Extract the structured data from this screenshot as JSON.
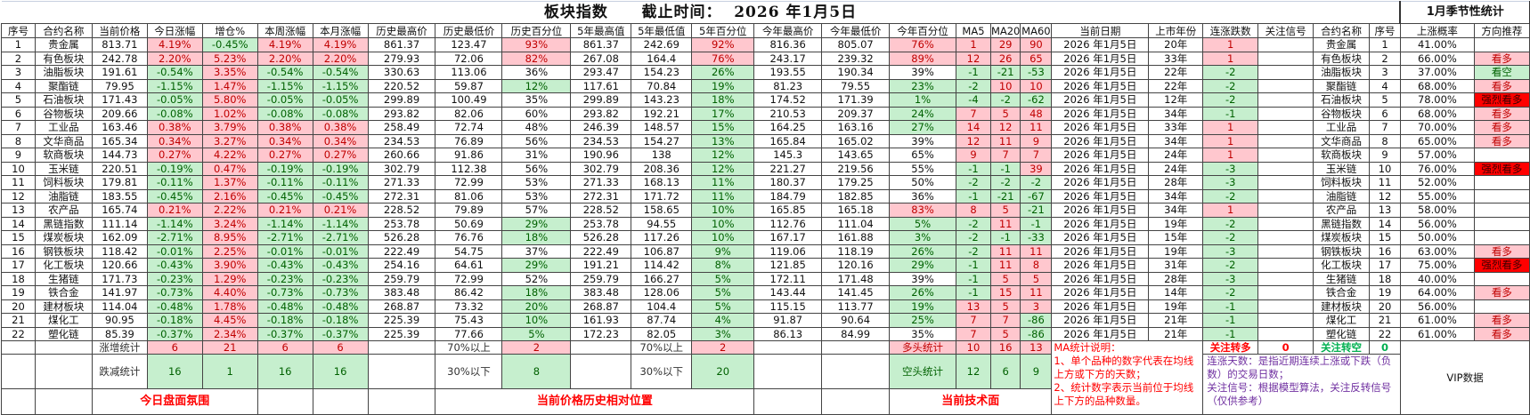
{
  "title": {
    "name": "板块指数",
    "deadline_label": "截止时间：",
    "date": "2026 年1月5日",
    "season_title": "1月季节性统计"
  },
  "columns": [
    "序号",
    "合约名称",
    "当前价格",
    "今日涨幅",
    "增仓%",
    "本周涨幅",
    "本月涨幅",
    "历史最高价",
    "历史最低价",
    "历史百分位",
    "5年最高值",
    "5年最低值",
    "5年百分位",
    "今年最高价",
    "今年最低价",
    "今年百分位",
    "MA5",
    "MA20",
    "MA60",
    "当前日期",
    "上市年份",
    "连涨跌数",
    "关注信号",
    "合约名称",
    "序号",
    "上涨概率",
    "方向推荐"
  ],
  "rows": [
    [
      "1",
      "贵金属",
      "813.71",
      "4.19%",
      "-0.45%",
      "4.19%",
      "4.19%",
      "861.37",
      "123.47",
      "93%",
      "861.37",
      "242.69",
      "92%",
      "816.36",
      "805.07",
      "76%",
      "1",
      "29",
      "90",
      "2026 年1月5日",
      "20年",
      "1",
      "",
      "贵金属",
      "1",
      "41.00%",
      ""
    ],
    [
      "2",
      "有色板块",
      "242.78",
      "2.20%",
      "5.23%",
      "2.20%",
      "2.20%",
      "279.93",
      "72.06",
      "82%",
      "267.08",
      "164.4",
      "76%",
      "243.17",
      "239.32",
      "89%",
      "12",
      "26",
      "65",
      "2026 年1月5日",
      "33年",
      "1",
      "",
      "有色板块",
      "2",
      "66.00%",
      "看多"
    ],
    [
      "3",
      "油脂板块",
      "191.61",
      "-0.54%",
      "3.35%",
      "-0.54%",
      "-0.54%",
      "330.63",
      "113.06",
      "36%",
      "293.47",
      "154.23",
      "26%",
      "193.55",
      "190.34",
      "39%",
      "-1",
      "-21",
      "-53",
      "2026 年1月5日",
      "22年",
      "-2",
      "",
      "油脂板块",
      "3",
      "37.00%",
      "看空"
    ],
    [
      "4",
      "聚酯链",
      "79.95",
      "-1.15%",
      "1.47%",
      "-1.15%",
      "-1.15%",
      "220.52",
      "59.87",
      "12%",
      "117.61",
      "70.84",
      "19%",
      "81.23",
      "79.55",
      "23%",
      "-2",
      "10",
      "10",
      "2026 年1月5日",
      "22年",
      "-2",
      "",
      "聚酯链",
      "4",
      "68.00%",
      "看多"
    ],
    [
      "5",
      "石油板块",
      "171.43",
      "-0.05%",
      "5.80%",
      "-0.05%",
      "-0.05%",
      "299.89",
      "100.49",
      "35%",
      "299.89",
      "143.23",
      "18%",
      "174.52",
      "171.39",
      "1%",
      "-4",
      "-2",
      "-62",
      "2026 年1月5日",
      "12年",
      "-2",
      "",
      "石油板块",
      "5",
      "78.00%",
      "强烈看多"
    ],
    [
      "6",
      "谷物板块",
      "209.66",
      "-0.08%",
      "1.02%",
      "-0.08%",
      "-0.08%",
      "293.82",
      "82.06",
      "60%",
      "293.82",
      "192.21",
      "17%",
      "210.53",
      "209.37",
      "24%",
      "7",
      "5",
      "48",
      "2026 年1月5日",
      "34年",
      "-1",
      "",
      "谷物板块",
      "6",
      "68.00%",
      "看多"
    ],
    [
      "7",
      "工业品",
      "163.46",
      "0.38%",
      "3.79%",
      "0.38%",
      "0.38%",
      "258.49",
      "72.74",
      "48%",
      "246.39",
      "148.57",
      "15%",
      "164.25",
      "163.16",
      "27%",
      "14",
      "12",
      "11",
      "2026 年1月5日",
      "33年",
      "1",
      "",
      "工业品",
      "7",
      "70.00%",
      "看多"
    ],
    [
      "8",
      "文华商品",
      "165.34",
      "0.34%",
      "3.27%",
      "0.34%",
      "0.34%",
      "234.53",
      "76.89",
      "56%",
      "234.53",
      "154.27",
      "13%",
      "165.84",
      "165.02",
      "39%",
      "12",
      "11",
      "9",
      "2026 年1月5日",
      "34年",
      "1",
      "",
      "文华商品",
      "8",
      "65.00%",
      "看多"
    ],
    [
      "9",
      "软商板块",
      "144.73",
      "0.27%",
      "4.22%",
      "0.27%",
      "0.27%",
      "260.66",
      "91.86",
      "31%",
      "190.96",
      "138",
      "12%",
      "145.3",
      "143.65",
      "65%",
      "9",
      "7",
      "7",
      "2026 年1月5日",
      "24年",
      "1",
      "",
      "软商板块",
      "9",
      "57.00%",
      ""
    ],
    [
      "10",
      "玉米链",
      "220.51",
      "-0.19%",
      "0.47%",
      "-0.19%",
      "-0.19%",
      "302.79",
      "112.38",
      "56%",
      "302.79",
      "208.36",
      "12%",
      "221.27",
      "219.56",
      "55%",
      "-1",
      "-1",
      "39",
      "2026 年1月5日",
      "24年",
      "-3",
      "",
      "玉米链",
      "10",
      "76.00%",
      "强烈看多"
    ],
    [
      "11",
      "饲料板块",
      "179.81",
      "-0.11%",
      "1.37%",
      "-0.11%",
      "-0.11%",
      "271.33",
      "72.99",
      "53%",
      "271.33",
      "168.13",
      "11%",
      "180.37",
      "179.25",
      "50%",
      "-2",
      "-2",
      "-2",
      "2026 年1月5日",
      "28年",
      "-3",
      "",
      "饲料板块",
      "11",
      "52.00%",
      ""
    ],
    [
      "12",
      "油脂链",
      "183.55",
      "-0.45%",
      "2.16%",
      "-0.45%",
      "-0.45%",
      "272.31",
      "81.06",
      "53%",
      "272.31",
      "171.72",
      "11%",
      "184.79",
      "182.85",
      "36%",
      "-1",
      "-21",
      "-67",
      "2026 年1月5日",
      "34年",
      "-2",
      "",
      "油脂链",
      "12",
      "55.00%",
      ""
    ],
    [
      "13",
      "农产品",
      "165.74",
      "0.21%",
      "2.22%",
      "0.21%",
      "0.21%",
      "228.52",
      "79.89",
      "57%",
      "228.52",
      "158.65",
      "10%",
      "165.85",
      "165.18",
      "83%",
      "8",
      "5",
      "-21",
      "2026 年1月5日",
      "34年",
      "1",
      "",
      "农产品",
      "13",
      "58.00%",
      ""
    ],
    [
      "14",
      "黑链指数",
      "111.14",
      "-1.14%",
      "3.24%",
      "-1.14%",
      "-1.14%",
      "253.78",
      "50.69",
      "29%",
      "253.78",
      "94.55",
      "10%",
      "112.76",
      "111.04",
      "5%",
      "-2",
      "11",
      "-1",
      "2026 年1月5日",
      "19年",
      "-2",
      "",
      "黑链指数",
      "14",
      "56.00%",
      ""
    ],
    [
      "15",
      "煤炭板块",
      "162.09",
      "-2.71%",
      "8.95%",
      "-2.71%",
      "-2.71%",
      "526.28",
      "76.76",
      "18%",
      "526.28",
      "117.26",
      "10%",
      "167.17",
      "161.88",
      "3%",
      "-2",
      "-1",
      "-33",
      "2026 年1月5日",
      "15年",
      "-2",
      "",
      "煤炭板块",
      "15",
      "50.00%",
      ""
    ],
    [
      "16",
      "钢铁板块",
      "118.42",
      "-0.01%",
      "2.25%",
      "-0.01%",
      "-0.01%",
      "222.49",
      "54.75",
      "37%",
      "222.49",
      "106.87",
      "9%",
      "119.06",
      "118.19",
      "26%",
      "-2",
      "11",
      "11",
      "2026 年1月5日",
      "19年",
      "-3",
      "",
      "钢铁板块",
      "16",
      "63.00%",
      "看多"
    ],
    [
      "17",
      "化工板块",
      "120.66",
      "-0.43%",
      "3.90%",
      "-0.43%",
      "-0.43%",
      "254.16",
      "64.61",
      "29%",
      "191.21",
      "114.42",
      "8%",
      "121.85",
      "120.16",
      "29%",
      "-1",
      "11",
      "8",
      "2026 年1月5日",
      "31年",
      "-2",
      "",
      "化工板块",
      "17",
      "75.00%",
      "强烈看多"
    ],
    [
      "18",
      "生猪链",
      "171.73",
      "-0.23%",
      "1.29%",
      "-0.23%",
      "-0.23%",
      "259.79",
      "72.99",
      "52%",
      "259.79",
      "166.27",
      "5%",
      "172.11",
      "171.48",
      "39%",
      "-1",
      "5",
      "5",
      "2026 年1月5日",
      "28年",
      "-3",
      "",
      "生猪链",
      "18",
      "40.00%",
      ""
    ],
    [
      "19",
      "铁合金",
      "141.97",
      "-0.73%",
      "4.40%",
      "-0.73%",
      "-0.73%",
      "383.48",
      "86.42",
      "18%",
      "383.48",
      "128.06",
      "5%",
      "143.44",
      "141.45",
      "26%",
      "-1",
      "15",
      "11",
      "2026 年1月5日",
      "14年",
      "-2",
      "",
      "铁合金",
      "19",
      "64.00%",
      "看多"
    ],
    [
      "20",
      "建材板块",
      "114.04",
      "-0.48%",
      "1.78%",
      "-0.48%",
      "-0.48%",
      "268.87",
      "73.32",
      "20%",
      "268.87",
      "104.4",
      "5%",
      "115.15",
      "113.77",
      "19%",
      "13",
      "5",
      "3",
      "2026 年1月5日",
      "19年",
      "-1",
      "",
      "建材板块",
      "20",
      "56.00%",
      ""
    ],
    [
      "21",
      "煤化工",
      "90.95",
      "-0.18%",
      "4.45%",
      "-0.18%",
      "-0.18%",
      "225.39",
      "75.43",
      "10%",
      "161.93",
      "87.74",
      "4%",
      "91.87",
      "90.64",
      "25%",
      "7",
      "7",
      "-86",
      "2026 年1月5日",
      "21年",
      "-1",
      "",
      "煤化工",
      "21",
      "61.00%",
      "看多"
    ],
    [
      "22",
      "塑化链",
      "85.39",
      "-0.37%",
      "2.34%",
      "-0.37%",
      "-0.37%",
      "225.39",
      "77.66",
      "5%",
      "172.23",
      "82.05",
      "3%",
      "86.13",
      "84.99",
      "35%",
      "7",
      "5",
      "-86",
      "2026 年1月5日",
      "21年",
      "-1",
      "",
      "塑化链",
      "22",
      "61.00%",
      "看多"
    ]
  ],
  "summary": {
    "rise_label": "涨增统计",
    "rise": [
      "6",
      "21",
      "6",
      "6"
    ],
    "fall_label": "跌减统计",
    "fall": [
      "16",
      "1",
      "16",
      "16"
    ],
    "today_caption": "今日盘面氛围",
    "above70_label": "70%以上",
    "below30_label": "30%以下",
    "hist_above70": "2",
    "hist_below30": "8",
    "five_above70": "2",
    "five_below30": "20",
    "position_caption": "当前价格历史相对位置",
    "bull_label": "多头统计",
    "bull": [
      "10",
      "16",
      "13"
    ],
    "bear_label": "空头统计",
    "bear": [
      "12",
      "6",
      "9"
    ],
    "tech_caption": "当前技术面",
    "ma_note": "MA统计说明：\n1、单个品种的数字代表在均线上方或下方的天数；\n2、统计数字表示当前位于均线上下方的品种数量。",
    "follow_bull_label": "关注转多",
    "follow_bull": "0",
    "follow_bear_label": "关注转空",
    "follow_bear": "0",
    "streak_note": "连涨天数：是指近期连续上涨或下跌（负数）的交易日数；\n关注信号：根据模型算法，关注反转信号（仅供参考）",
    "vip": "VIP数据"
  },
  "colors": {
    "up_bg": "#ffc7ce",
    "up_text": "#c00000",
    "down_bg": "#c6efce",
    "down_text": "#006100",
    "strong_bull": "#ff0000"
  }
}
